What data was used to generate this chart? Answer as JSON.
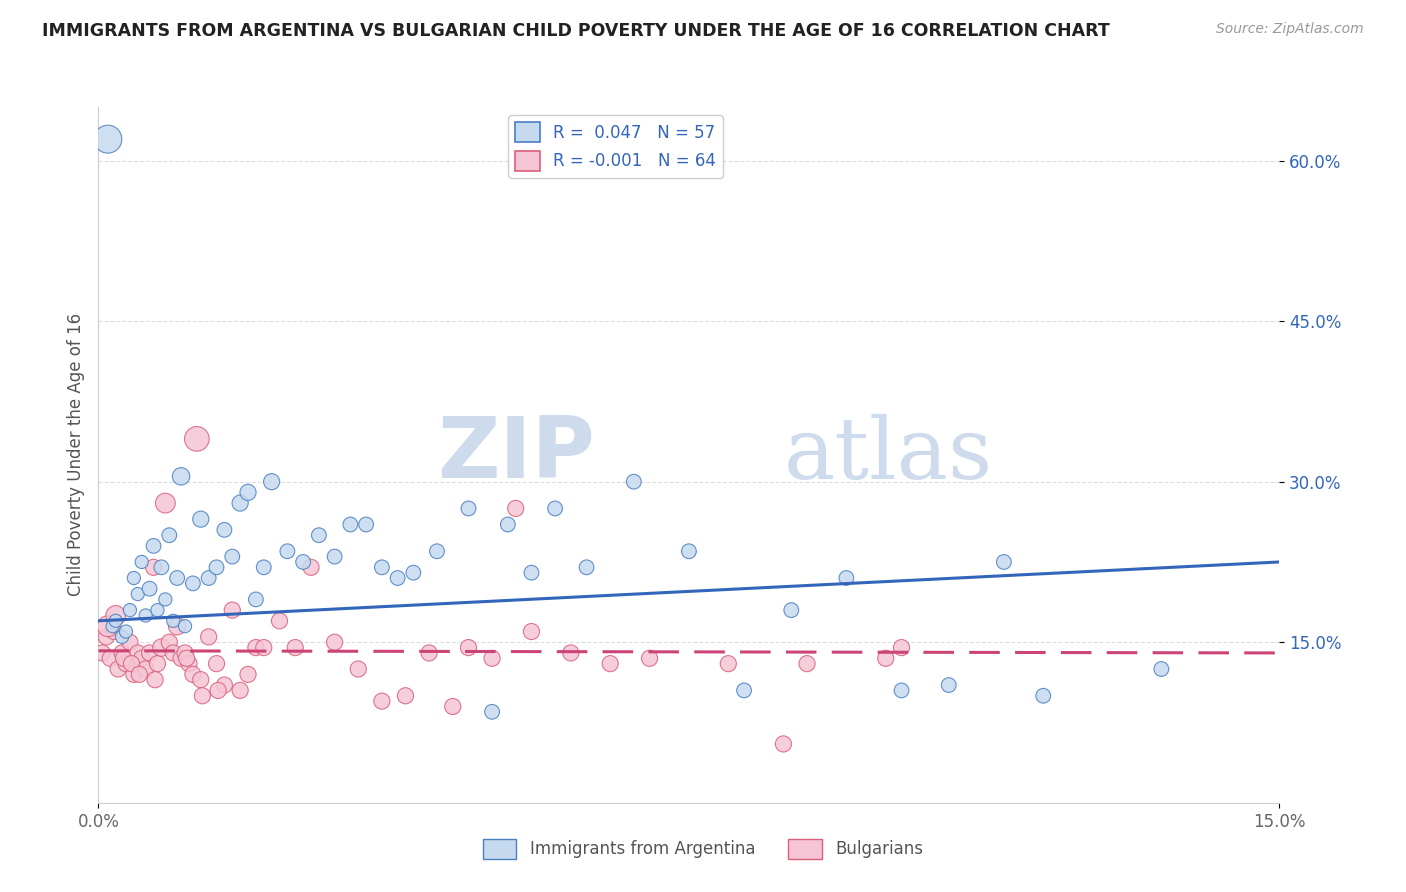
{
  "title": "IMMIGRANTS FROM ARGENTINA VS BULGARIAN CHILD POVERTY UNDER THE AGE OF 16 CORRELATION CHART",
  "source": "Source: ZipAtlas.com",
  "ylabel": "Child Poverty Under the Age of 16",
  "watermark_zip": "ZIP",
  "watermark_atlas": "atlas",
  "legend_blue_r": "R =  0.047",
  "legend_blue_n": "N = 57",
  "legend_pink_r": "R = -0.001",
  "legend_pink_n": "N = 64",
  "legend_blue_label": "Immigrants from Argentina",
  "legend_pink_label": "Bulgarians",
  "blue_fill": "#c5daef",
  "blue_edge": "#4a7fc1",
  "pink_fill": "#f5c5d5",
  "pink_edge": "#d9607a",
  "blue_line_color": "#3366bb",
  "pink_line_color": "#cc4477",
  "x_min": 0.0,
  "x_max": 15.0,
  "y_min": 0.0,
  "y_max": 65.0,
  "y_ticks": [
    15.0,
    30.0,
    45.0,
    60.0
  ],
  "y_tick_labels": [
    "15.0%",
    "30.0%",
    "45.0%",
    "60.0%"
  ],
  "blue_trend_x0": 0.0,
  "blue_trend_y0": 17.0,
  "blue_trend_x1": 15.0,
  "blue_trend_y1": 22.5,
  "pink_trend_x0": 0.0,
  "pink_trend_y0": 14.2,
  "pink_trend_x1": 15.0,
  "pink_trend_y1": 14.0,
  "blue_x": [
    0.18,
    0.22,
    0.3,
    0.35,
    0.4,
    0.45,
    0.5,
    0.55,
    0.6,
    0.65,
    0.7,
    0.75,
    0.8,
    0.85,
    0.9,
    0.95,
    1.0,
    1.05,
    1.1,
    1.2,
    1.3,
    1.4,
    1.5,
    1.6,
    1.7,
    1.8,
    1.9,
    2.0,
    2.1,
    2.2,
    2.4,
    2.6,
    2.8,
    3.0,
    3.2,
    3.4,
    3.6,
    3.8,
    4.0,
    4.3,
    4.7,
    5.2,
    5.5,
    5.8,
    6.2,
    6.8,
    7.5,
    8.2,
    8.8,
    9.5,
    10.2,
    10.8,
    11.5,
    12.0,
    13.5,
    5.0,
    0.12
  ],
  "blue_y": [
    16.5,
    17.0,
    15.5,
    16.0,
    18.0,
    21.0,
    19.5,
    22.5,
    17.5,
    20.0,
    24.0,
    18.0,
    22.0,
    19.0,
    25.0,
    17.0,
    21.0,
    30.5,
    16.5,
    20.5,
    26.5,
    21.0,
    22.0,
    25.5,
    23.0,
    28.0,
    29.0,
    19.0,
    22.0,
    30.0,
    23.5,
    22.5,
    25.0,
    23.0,
    26.0,
    26.0,
    22.0,
    21.0,
    21.5,
    23.5,
    27.5,
    26.0,
    21.5,
    27.5,
    22.0,
    30.0,
    23.5,
    10.5,
    18.0,
    21.0,
    10.5,
    11.0,
    22.5,
    10.0,
    12.5,
    8.5,
    62.0
  ],
  "blue_size": [
    20,
    20,
    20,
    20,
    20,
    20,
    20,
    20,
    20,
    25,
    25,
    20,
    25,
    20,
    25,
    20,
    25,
    35,
    20,
    25,
    30,
    25,
    25,
    25,
    25,
    30,
    30,
    25,
    25,
    30,
    25,
    25,
    25,
    25,
    25,
    25,
    25,
    25,
    25,
    25,
    25,
    25,
    25,
    25,
    25,
    25,
    25,
    25,
    25,
    25,
    25,
    25,
    25,
    25,
    25,
    25,
    90
  ],
  "pink_x": [
    0.05,
    0.1,
    0.15,
    0.2,
    0.25,
    0.3,
    0.35,
    0.4,
    0.45,
    0.5,
    0.55,
    0.6,
    0.65,
    0.7,
    0.75,
    0.8,
    0.85,
    0.9,
    0.95,
    1.0,
    1.05,
    1.1,
    1.15,
    1.2,
    1.3,
    1.4,
    1.5,
    1.6,
    1.7,
    1.8,
    1.9,
    2.0,
    2.1,
    2.3,
    2.5,
    2.7,
    3.0,
    3.3,
    3.6,
    3.9,
    4.2,
    4.5,
    5.0,
    5.5,
    6.0,
    7.0,
    8.0,
    9.0,
    10.0,
    1.25,
    0.12,
    0.22,
    0.32,
    0.42,
    0.52,
    0.72,
    1.12,
    1.32,
    1.52,
    4.7,
    5.3,
    8.7,
    10.2,
    6.5
  ],
  "pink_y": [
    14.0,
    15.5,
    13.5,
    16.0,
    12.5,
    14.0,
    13.0,
    15.0,
    12.0,
    14.0,
    13.5,
    12.5,
    14.0,
    22.0,
    13.0,
    14.5,
    28.0,
    15.0,
    14.0,
    16.5,
    13.5,
    14.0,
    13.0,
    12.0,
    11.5,
    15.5,
    13.0,
    11.0,
    18.0,
    10.5,
    12.0,
    14.5,
    14.5,
    17.0,
    14.5,
    22.0,
    15.0,
    12.5,
    9.5,
    10.0,
    14.0,
    9.0,
    13.5,
    16.0,
    14.0,
    13.5,
    13.0,
    13.0,
    13.5,
    34.0,
    16.5,
    17.5,
    13.5,
    13.0,
    12.0,
    11.5,
    13.5,
    10.0,
    10.5,
    14.5,
    27.5,
    5.5,
    14.5,
    13.0
  ],
  "pink_size": [
    30,
    30,
    30,
    30,
    30,
    30,
    30,
    30,
    30,
    30,
    30,
    30,
    30,
    30,
    30,
    35,
    45,
    30,
    30,
    35,
    30,
    30,
    30,
    30,
    30,
    30,
    30,
    30,
    30,
    30,
    30,
    30,
    30,
    30,
    30,
    30,
    30,
    30,
    30,
    30,
    30,
    30,
    30,
    30,
    30,
    30,
    30,
    30,
    30,
    70,
    50,
    45,
    30,
    30,
    30,
    30,
    30,
    30,
    30,
    30,
    30,
    30,
    30,
    30
  ]
}
